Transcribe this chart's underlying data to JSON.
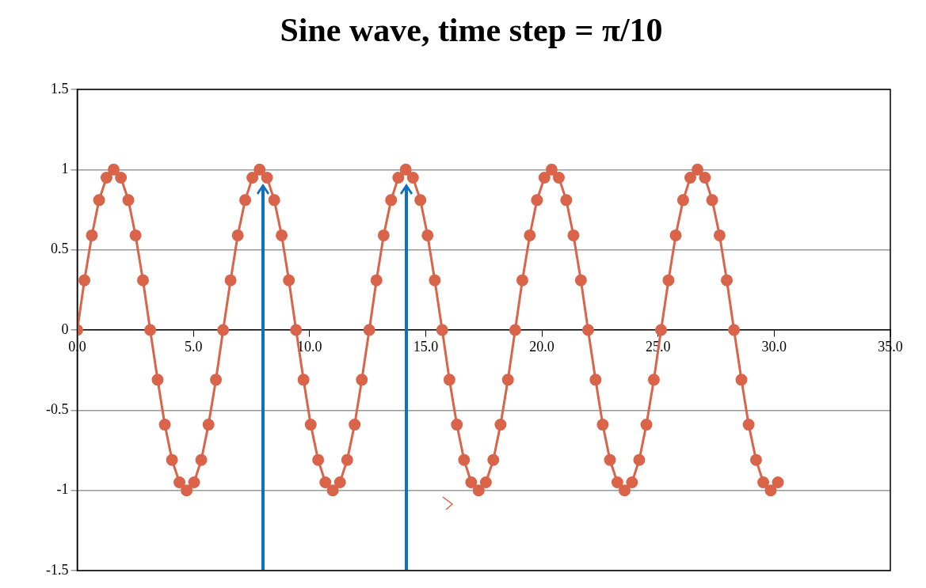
{
  "chart_data": {
    "type": "line",
    "title": "Sine wave, time step = π/10",
    "x": [
      0,
      0.31,
      0.63,
      0.94,
      1.26,
      1.57,
      1.88,
      2.2,
      2.51,
      2.83,
      3.14,
      3.46,
      3.77,
      4.08,
      4.4,
      4.71,
      5.03,
      5.34,
      5.65,
      5.97,
      6.28,
      6.6,
      6.91,
      7.23,
      7.54,
      7.85,
      8.17,
      8.48,
      8.8,
      9.11,
      9.42,
      9.74,
      10.05,
      10.37,
      10.68,
      11,
      11.31,
      11.62,
      11.94,
      12.25,
      12.57,
      12.88,
      13.19,
      13.51,
      13.82,
      14.14,
      14.45,
      14.77,
      15.08,
      15.39,
      15.71,
      16.02,
      16.34,
      16.65,
      16.96,
      17.28,
      17.59,
      17.91,
      18.22,
      18.54,
      18.85,
      19.16,
      19.48,
      19.79,
      20.11,
      20.42,
      20.73,
      21.05,
      21.36,
      21.68,
      21.99,
      22.31,
      22.62,
      22.93,
      23.25,
      23.56,
      23.88,
      24.19,
      24.5,
      24.82,
      25.13,
      25.45,
      25.76,
      26.08,
      26.39,
      26.7,
      27.02,
      27.33,
      27.65,
      27.96,
      28.27,
      28.59,
      28.9,
      29.22,
      29.53,
      29.85,
      30.16
    ],
    "series": [
      {
        "color": "#d9644a",
        "values": [
          0,
          0.31,
          0.59,
          0.81,
          0.95,
          1,
          0.95,
          0.81,
          0.59,
          0.31,
          0,
          -0.31,
          -0.59,
          -0.81,
          -0.95,
          -1,
          -0.95,
          -0.81,
          -0.59,
          -0.31,
          0,
          0.31,
          0.59,
          0.81,
          0.95,
          1,
          0.95,
          0.81,
          0.59,
          0.31,
          0,
          -0.31,
          -0.59,
          -0.81,
          -0.95,
          -1,
          -0.95,
          -0.81,
          -0.59,
          -0.31,
          0,
          0.31,
          0.59,
          0.81,
          0.95,
          1,
          0.95,
          0.81,
          0.59,
          0.31,
          0,
          -0.31,
          -0.59,
          -0.81,
          -0.95,
          -1,
          -0.95,
          -0.81,
          -0.59,
          -0.31,
          0,
          0.31,
          0.59,
          0.81,
          0.95,
          1,
          0.95,
          0.81,
          0.59,
          0.31,
          0,
          -0.31,
          -0.59,
          -0.81,
          -0.95,
          -1,
          -0.95,
          -0.81,
          -0.59,
          -0.31,
          0,
          0.31,
          0.59,
          0.81,
          0.95,
          1,
          0.95,
          0.81,
          0.59,
          0.31,
          0,
          -0.31,
          -0.59,
          -0.81,
          -0.95,
          -1,
          -0.95
        ]
      }
    ],
    "xlim": [
      0,
      35
    ],
    "xticks": [
      {
        "value": 0,
        "label": "0.0"
      },
      {
        "value": 5,
        "label": "5.0"
      },
      {
        "value": 10,
        "label": "10.0"
      },
      {
        "value": 15,
        "label": "15.0"
      },
      {
        "value": 20,
        "label": "20.0"
      },
      {
        "value": 25,
        "label": "25.0"
      },
      {
        "value": 30,
        "label": "30.0"
      },
      {
        "value": 35,
        "label": "35.0"
      }
    ],
    "ylim": [
      -1.5,
      1.5
    ],
    "yticks": [
      -1.5,
      -1,
      -0.5,
      0,
      0.5,
      1,
      1.5
    ],
    "grid": "y",
    "legend": false,
    "marker": "circle",
    "line_style": "solid"
  }
}
